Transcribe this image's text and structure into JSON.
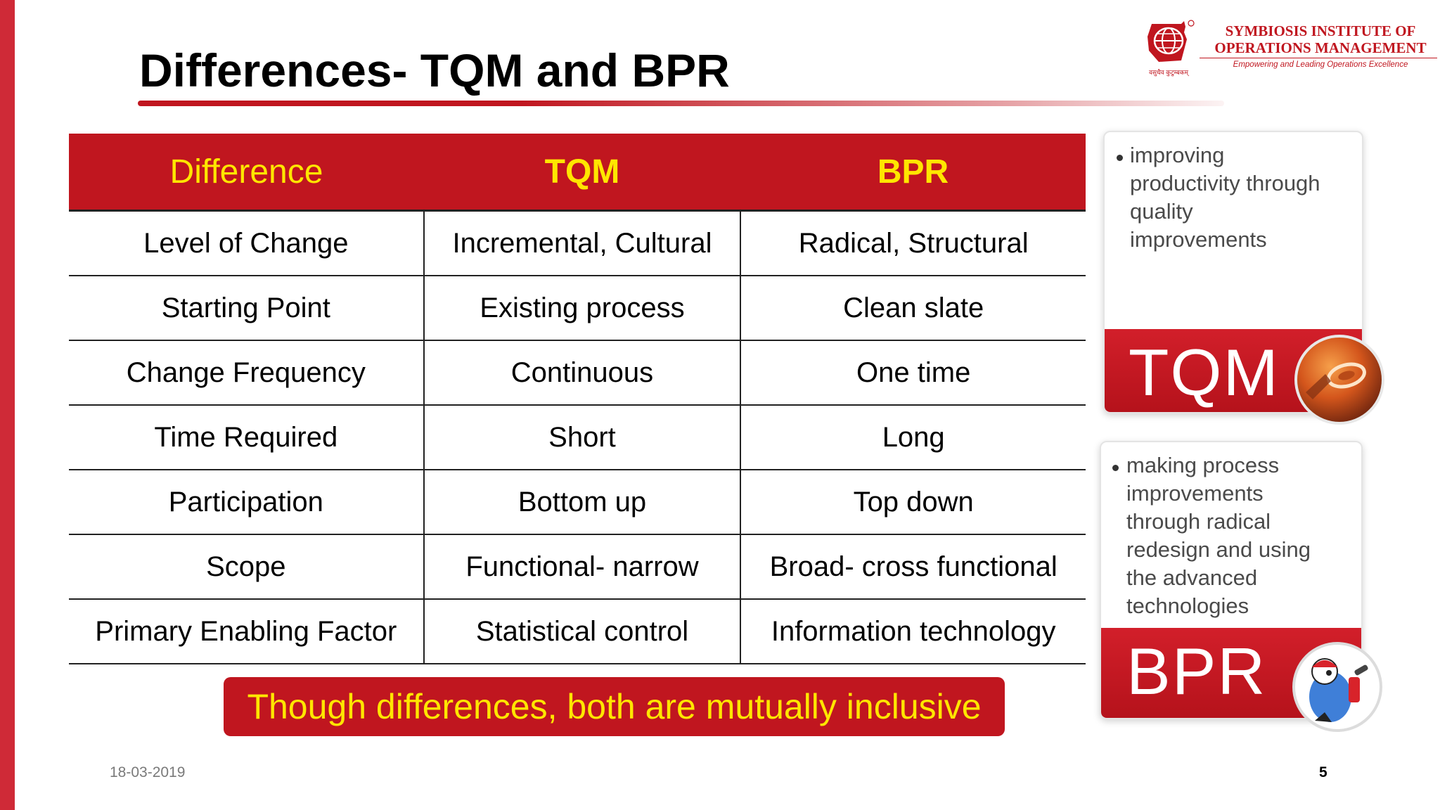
{
  "slide": {
    "title": "Differences- TQM and BPR",
    "date": "18-03-2019",
    "page_number": "5"
  },
  "logo": {
    "name_line1": "SYMBIOSIS INSTITUTE OF",
    "name_line2": "OPERATIONS MANAGEMENT",
    "tagline": "Empowering and Leading Operations Excellence",
    "motto": "वसुधैव कुटुम्बकम्"
  },
  "table": {
    "headers": [
      "Difference",
      "TQM",
      "BPR"
    ],
    "rows": [
      [
        "Level of Change",
        "Incremental, Cultural",
        "Radical, Structural"
      ],
      [
        "Starting Point",
        "Existing process",
        "Clean slate"
      ],
      [
        "Change Frequency",
        "Continuous",
        "One time"
      ],
      [
        "Time Required",
        "Short",
        "Long"
      ],
      [
        "Participation",
        "Bottom up",
        "Top down"
      ],
      [
        "Scope",
        "Functional- narrow",
        "Broad- cross functional"
      ],
      [
        "Primary Enabling Factor",
        "Statistical control",
        "Information technology"
      ]
    ]
  },
  "banner": {
    "text": "Though differences, both are mutually inclusive"
  },
  "cards": {
    "tqm": {
      "label": "TQM",
      "lines": [
        "improving",
        "productivity through",
        "quality",
        "improvements"
      ]
    },
    "bpr": {
      "label": "BPR",
      "lines": [
        "making process",
        "improvements",
        "through radical",
        "redesign and using",
        "the advanced",
        "technologies"
      ]
    }
  },
  "colors": {
    "accent_red": "#c0161f",
    "header_text": "#ffe600",
    "side_bar": "#cf2a37"
  }
}
